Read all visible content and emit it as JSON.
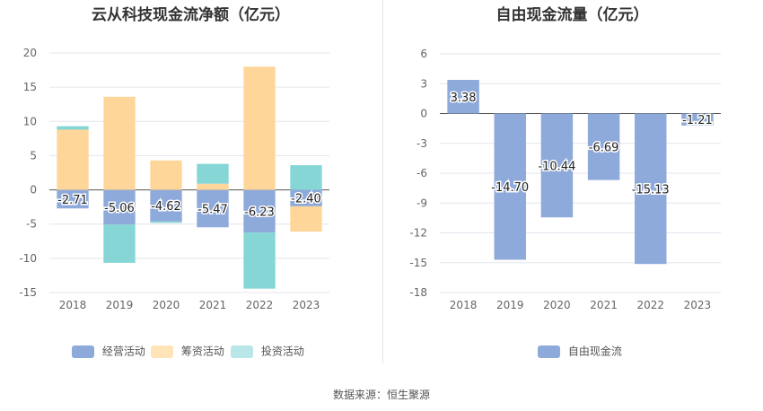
{
  "titles": {
    "left": "云从科技现金流净额（亿元）",
    "right": "自由现金流量（亿元）"
  },
  "source": "数据来源：恒生聚源",
  "colors": {
    "operating": "#8eaadb",
    "financing": "#ffd699",
    "investing": "#86d6d6",
    "free_cash_flow": "#8eaadb"
  },
  "chart_data": [
    {
      "type": "bar",
      "stacked": true,
      "title": "云从科技现金流净额（亿元）",
      "categories": [
        "2018",
        "2019",
        "2020",
        "2021",
        "2022",
        "2023"
      ],
      "series": [
        {
          "name": "经营活动",
          "values": [
            -2.71,
            -5.06,
            -4.62,
            -5.47,
            -6.23,
            -2.4
          ]
        },
        {
          "name": "筹资活动",
          "values": [
            8.8,
            13.6,
            4.3,
            0.9,
            18.0,
            -3.7
          ]
        },
        {
          "name": "投资活动",
          "values": [
            0.5,
            -5.6,
            -0.2,
            2.9,
            -8.2,
            3.6
          ]
        }
      ],
      "data_labels": [
        "-2.71",
        "-5.06",
        "-4.62",
        "-5.47",
        "-6.23",
        "-2.40"
      ],
      "yticks": [
        "20",
        "15",
        "10",
        "5",
        "0",
        "-5",
        "-10",
        "-15"
      ],
      "ylim": [
        -15,
        20
      ],
      "grid": true,
      "legend": "bottom"
    },
    {
      "type": "bar",
      "title": "自由现金流量（亿元）",
      "categories": [
        "2018",
        "2019",
        "2020",
        "2021",
        "2022",
        "2023"
      ],
      "series": [
        {
          "name": "自由现金流",
          "values": [
            3.38,
            -14.7,
            -10.44,
            -6.69,
            -15.13,
            -1.21
          ]
        }
      ],
      "data_labels": [
        "3.38",
        "-14.70",
        "-10.44",
        "-6.69",
        "-15.13",
        "-1.21"
      ],
      "yticks": [
        "6",
        "3",
        "0",
        "-3",
        "-6",
        "-9",
        "-12",
        "-15",
        "-18"
      ],
      "ylim": [
        -18,
        6
      ],
      "grid": true,
      "legend": "bottom"
    }
  ]
}
